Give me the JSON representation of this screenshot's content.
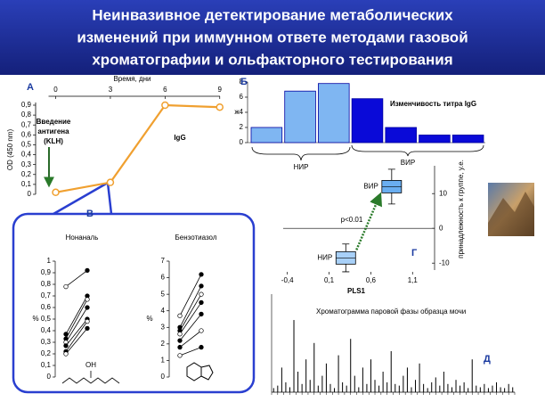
{
  "title": [
    "Неинвазивное детектирование метаболических",
    "изменений при иммунном ответе методами газовой",
    "хроматографии и ольфакторного тестирования"
  ],
  "chart_data": [
    {
      "type": "line",
      "panel_label": "А",
      "xlabel": "Время, дни",
      "ylabel": "OD (450 nm)",
      "x": [
        0,
        3,
        6,
        9
      ],
      "values": [
        0.02,
        0.12,
        0.9,
        0.88
      ],
      "color": "#f0a030",
      "xlim": [
        -1.1,
        9.5
      ],
      "xticks": [
        0,
        3,
        6,
        9
      ],
      "ylim": [
        0,
        0.9
      ],
      "yticks": [
        0,
        {
          "value": 0.1,
          "label": "0,1"
        },
        {
          "value": 0.2,
          "label": "0,2"
        },
        {
          "value": 0.3,
          "label": "0,3"
        },
        {
          "value": 0.4,
          "label": "0,4"
        },
        {
          "value": 0.5,
          "label": "0,5"
        },
        {
          "value": 0.6,
          "label": "0,6"
        },
        {
          "value": 0.7,
          "label": "0,7"
        },
        {
          "value": 0.8,
          "label": "0,8"
        },
        {
          "value": 0.9,
          "label": "0,9"
        }
      ],
      "antigen_note": [
        "Введение",
        "антигена",
        "(KLH)"
      ],
      "series_label": "IgG"
    },
    {
      "type": "bar",
      "panel_label": "Б",
      "ylabel": "ж",
      "categories": [
        null,
        null,
        null,
        null,
        null,
        null,
        null
      ],
      "values": [
        2,
        6.8,
        7.8,
        5.8,
        2,
        1,
        1
      ],
      "colors": [
        "#7fb6f2",
        "#7fb6f2",
        "#7fb6f2",
        "#0a0ad8",
        "#0a0ad8",
        "#0a0ad8",
        "#0a0ad8"
      ],
      "ylim": [
        0,
        8
      ],
      "yticks": [
        0,
        2,
        4,
        6,
        8
      ],
      "annotation": "Изменчивость титра IgG",
      "groups": [
        "НИР",
        "ВИР"
      ]
    },
    {
      "type": "paired",
      "panel_label": "В",
      "title": "Нонаналь",
      "ylabel": "%",
      "structure_label": "OH",
      "ylim": [
        0,
        1
      ],
      "yticks": [
        0,
        {
          "value": 0.1,
          "label": "0,1"
        },
        {
          "value": 0.2,
          "label": "0,2"
        },
        {
          "value": 0.3,
          "label": "0,3"
        },
        {
          "value": 0.4,
          "label": "0,4"
        },
        {
          "value": 0.5,
          "label": "0,5"
        },
        {
          "value": 0.6,
          "label": "0,6"
        },
        {
          "value": 0.7,
          "label": "0,7"
        },
        {
          "value": 0.8,
          "label": "0,8"
        },
        {
          "value": 0.9,
          "label": "0,9"
        },
        1
      ],
      "series": [
        {
          "values": [
            0.78,
            0.92
          ]
        },
        {
          "values": [
            0.37,
            0.7
          ]
        },
        {
          "values": [
            0.33,
            0.67
          ]
        },
        {
          "values": [
            0.3,
            0.6
          ]
        },
        {
          "values": [
            0.27,
            0.5
          ]
        },
        {
          "values": [
            0.22,
            0.48
          ]
        },
        {
          "values": [
            0.2,
            0.42
          ]
        }
      ]
    },
    {
      "type": "paired",
      "title": "Бензотиазол",
      "ylabel": "%",
      "ylim": [
        0,
        7
      ],
      "yticks": [
        0,
        1,
        2,
        3,
        4,
        5,
        6,
        7
      ],
      "series": [
        {
          "values": [
            3.7,
            6.2
          ]
        },
        {
          "values": [
            3.0,
            5.5
          ]
        },
        {
          "values": [
            2.8,
            5.0
          ]
        },
        {
          "values": [
            2.6,
            4.5
          ]
        },
        {
          "values": [
            2.2,
            3.8
          ]
        },
        {
          "values": [
            1.8,
            2.8
          ]
        },
        {
          "values": [
            1.3,
            1.8
          ]
        }
      ]
    },
    {
      "type": "scatter",
      "panel_label": "Г",
      "xlabel": "PLS1",
      "ylabel": "принадлежность к группе, у.е.",
      "annotation": "p<0.01",
      "xlim": [
        -0.45,
        1.3
      ],
      "xticks": [
        {
          "value": -0.4,
          "label": "-0,4"
        },
        {
          "value": 0.1,
          "label": "0,1"
        },
        {
          "value": 0.6,
          "label": "0,6"
        },
        {
          "value": 1.1,
          "label": "1,1"
        }
      ],
      "ylim": [
        -12,
        18
      ],
      "yticks": [
        -10,
        0,
        10
      ],
      "series": [
        {
          "name": "ВИР",
          "color": "#6aaef0",
          "x": [
            0.85
          ],
          "values": [
            12
          ],
          "yerr": [
            5
          ]
        },
        {
          "name": "НИР",
          "color": "#a8d0f8",
          "x": [
            0.3
          ],
          "values": [
            -8.5
          ],
          "yerr": [
            4
          ]
        }
      ]
    },
    {
      "type": "spikes",
      "panel_label": "Д",
      "title": "Хроматограмма паровой фазы образца мочи",
      "ylim": [
        0,
        100
      ],
      "values": [
        5,
        8,
        30,
        12,
        6,
        88,
        25,
        10,
        40,
        15,
        60,
        8,
        20,
        35,
        10,
        5,
        45,
        12,
        8,
        65,
        20,
        6,
        30,
        10,
        40,
        15,
        8,
        25,
        12,
        50,
        10,
        8,
        20,
        30,
        6,
        15,
        35,
        10,
        5,
        12,
        18,
        8,
        25,
        10,
        6,
        15,
        8,
        12,
        5,
        40,
        8,
        6,
        10,
        5,
        8,
        12,
        6,
        5,
        10,
        6
      ]
    }
  ]
}
